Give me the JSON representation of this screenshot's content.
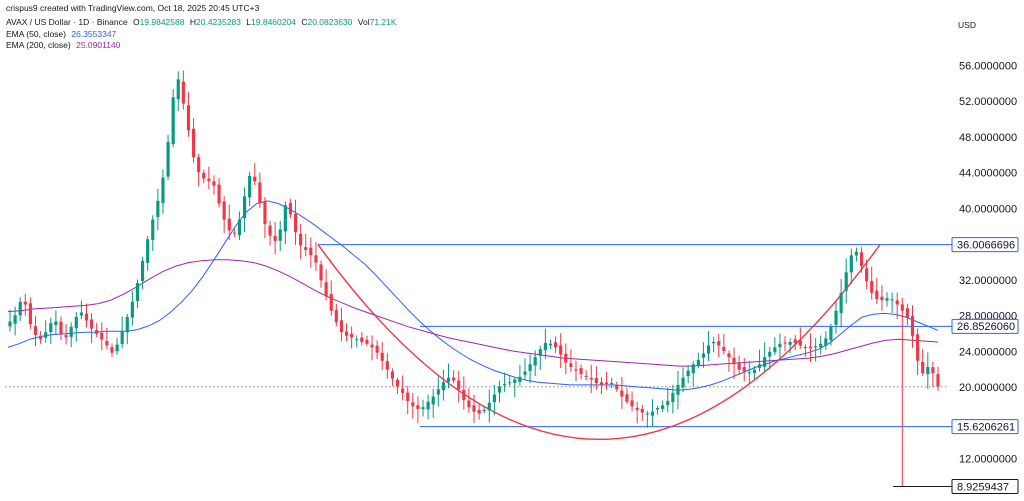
{
  "header": {
    "creator": "crispus9 created with TradingView.com, Oct 18, 2025 20:45 UTC+3",
    "symbol": "AVAX / US Dollar · 1D · Binance",
    "ohlc": {
      "o_label": "O",
      "o": "19.9842588",
      "h_label": "H",
      "h": "20.4235283",
      "l_label": "L",
      "l": "19.8460204",
      "c_label": "C",
      "c": "20.0823630",
      "vol_label": "Vol",
      "vol": "71.21K"
    },
    "ema50": {
      "label": "EMA (50, close)",
      "value": "26.3553347"
    },
    "ema200": {
      "label": "EMA (200, close)",
      "value": "25.0901140"
    }
  },
  "currency": "USD",
  "colors": {
    "up": "#089981",
    "down": "#f23645",
    "ema50": "#2962ff",
    "ema200": "#9c27b0",
    "level": "#2962ff",
    "arc": "#f23645"
  },
  "chart_data": {
    "type": "candlestick",
    "y_axis": {
      "min": 8,
      "max": 58,
      "scale": "linear",
      "ticks": [
        56,
        52,
        48,
        44,
        40,
        32,
        28,
        24,
        20,
        12
      ],
      "tick_labels": [
        "56.0000000",
        "52.0000000",
        "48.0000000",
        "44.0000000",
        "40.0000000",
        "32.0000000",
        "28.0000000",
        "24.0000000",
        "20.0000000",
        "12.0000000"
      ]
    },
    "levels": [
      {
        "value": 36.0066696,
        "label": "36.0066696"
      },
      {
        "value": 26.852606,
        "label": "26.8526060"
      },
      {
        "value": 15.6206261,
        "label": "15.6206261"
      }
    ],
    "wick_low": {
      "value": 8.9259437,
      "label": "8.9259437"
    },
    "last_price": 20.082363,
    "series": [
      {
        "name": "AVAX / US Dollar",
        "kind": "close_path",
        "values": [
          27.4,
          28.1,
          29.6,
          29.3,
          27.1,
          25.9,
          25.4,
          26.2,
          27.2,
          27.4,
          26.0,
          25.6,
          26.8,
          27.9,
          28.4,
          27.5,
          26.6,
          26.0,
          25.4,
          24.7,
          23.9,
          24.8,
          26.3,
          27.9,
          29.6,
          31.7,
          34.2,
          36.6,
          38.8,
          40.9,
          43.5,
          47.5,
          52.5,
          54.5,
          51.8,
          48.8,
          45.8,
          44.1,
          43.4,
          43.1,
          42.6,
          40.6,
          38.8,
          37.6,
          37.3,
          38.8,
          41.4,
          43.7,
          43.1,
          40.6,
          38.3,
          37.0,
          36.4,
          37.7,
          40.4,
          39.4,
          37.4,
          35.9,
          35.4,
          34.8,
          34.0,
          32.0,
          30.2,
          28.6,
          27.3,
          26.2,
          25.8,
          25.6,
          25.4,
          25.1,
          24.9,
          24.5,
          23.9,
          23.0,
          22.0,
          21.0,
          20.1,
          19.4,
          18.5,
          17.9,
          17.6,
          17.8,
          18.4,
          19.0,
          19.8,
          20.6,
          21.1,
          20.8,
          19.8,
          18.6,
          17.8,
          17.3,
          17.1,
          17.5,
          18.3,
          19.2,
          20.1,
          20.4,
          20.6,
          20.9,
          21.2,
          21.8,
          22.6,
          23.4,
          24.3,
          25.0,
          24.9,
          24.5,
          23.7,
          22.8,
          22.3,
          21.9,
          21.5,
          21.2,
          20.9,
          20.5,
          20.3,
          20.4,
          20.5,
          19.8,
          19.0,
          18.4,
          17.9,
          17.5,
          17.2,
          17.1,
          17.3,
          17.7,
          18.0,
          18.5,
          19.4,
          20.3,
          21.1,
          21.9,
          22.6,
          23.1,
          23.8,
          24.7,
          25.1,
          24.7,
          24.1,
          23.4,
          22.6,
          22.0,
          21.8,
          21.7,
          22.0,
          22.6,
          23.4,
          24.0,
          24.5,
          24.9,
          25.0,
          25.1,
          25.0,
          24.7,
          24.5,
          24.4,
          24.6,
          24.9,
          25.5,
          26.8,
          28.6,
          30.6,
          32.9,
          34.8,
          35.2,
          33.6,
          31.9,
          30.6,
          29.9,
          29.8,
          30.0,
          29.9,
          29.3,
          28.6,
          27.8,
          25.8,
          23.0,
          21.6,
          22.3,
          21.6,
          20.1
        ]
      },
      {
        "name": "EMA (50, close)",
        "kind": "line",
        "values": [
          24.5,
          24.9,
          25.4,
          25.7,
          25.9,
          26.0,
          26.1,
          26.2,
          26.2,
          26.3,
          26.3,
          26.3,
          26.5,
          26.9,
          27.5,
          28.4,
          29.5,
          30.8,
          32.4,
          34.2,
          36.1,
          38.0,
          39.6,
          40.6,
          40.9,
          40.6,
          40.0,
          39.3,
          38.5,
          37.6,
          36.7,
          35.8,
          34.8,
          33.8,
          32.6,
          31.3,
          30.0,
          28.7,
          27.5,
          26.4,
          25.4,
          24.5,
          23.7,
          23.0,
          22.4,
          21.9,
          21.5,
          21.1,
          20.8,
          20.6,
          20.5,
          20.4,
          20.3,
          20.3,
          20.3,
          20.3,
          20.3,
          20.2,
          20.1,
          20.0,
          19.9,
          19.8,
          19.7,
          19.8,
          20.0,
          20.3,
          20.7,
          21.2,
          21.7,
          22.2,
          22.6,
          23.0,
          23.3,
          23.6,
          23.9,
          24.3,
          25.0,
          26.0,
          27.0,
          27.9,
          28.2,
          28.3,
          28.2,
          27.9,
          27.4,
          26.9,
          26.4
        ]
      },
      {
        "name": "EMA (200, close)",
        "kind": "line",
        "values": [
          28.5,
          28.6,
          28.8,
          28.9,
          29.0,
          29.1,
          29.2,
          29.4,
          29.8,
          30.5,
          31.3,
          32.2,
          33.0,
          33.6,
          34.0,
          34.2,
          34.3,
          34.3,
          34.2,
          34.0,
          33.6,
          33.0,
          32.3,
          31.5,
          30.7,
          30.0,
          29.4,
          28.8,
          28.3,
          27.8,
          27.3,
          26.8,
          26.4,
          26.0,
          25.6,
          25.3,
          25.0,
          24.7,
          24.4,
          24.1,
          23.9,
          23.7,
          23.5,
          23.3,
          23.2,
          23.1,
          23.0,
          22.9,
          22.8,
          22.7,
          22.6,
          22.5,
          22.4,
          22.4,
          22.5,
          22.6,
          22.7,
          22.8,
          22.9,
          23.0,
          23.1,
          23.2,
          23.3,
          23.5,
          23.8,
          24.2,
          24.6,
          25.0,
          25.3,
          25.4,
          25.3,
          25.2,
          25.1
        ]
      }
    ],
    "annotations": {
      "rounded_bottom_arc": {
        "from": 36.0066696,
        "bottom": 14.2,
        "to": 36.0066696
      }
    },
    "grid": false,
    "legend": "top-left"
  }
}
